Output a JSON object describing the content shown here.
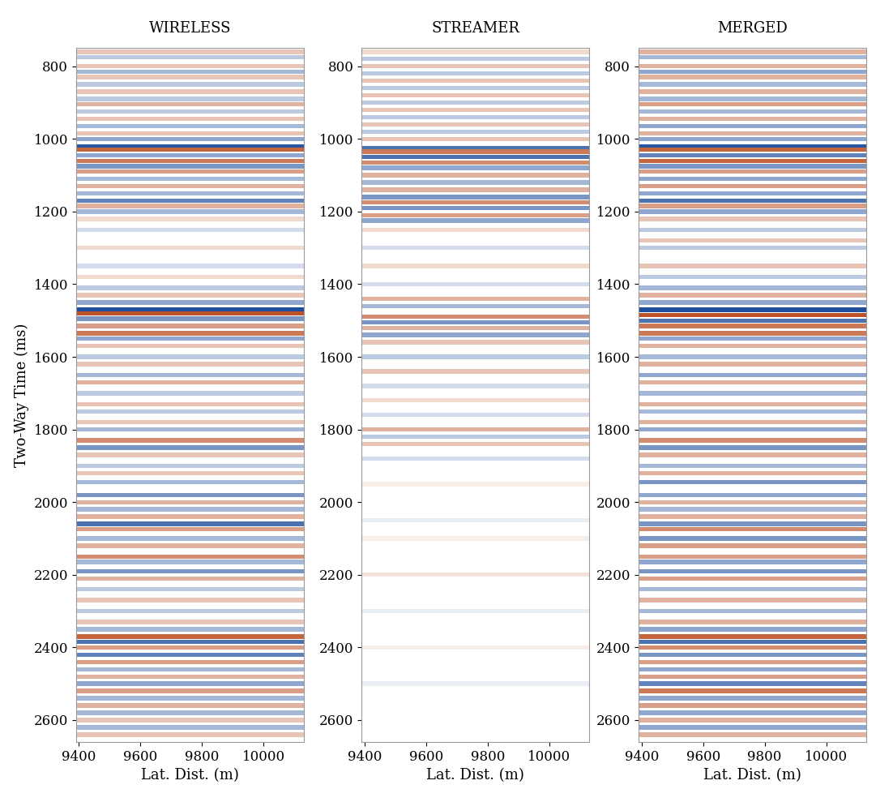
{
  "chart_data": [
    {
      "type": "seismic",
      "title": "WIRELESS",
      "x_label": "Lat. Dist. (m)",
      "y_label": "Two-Way Time (ms)",
      "xlim": [
        9390,
        10130
      ],
      "xticks": [
        9400,
        9600,
        9800,
        10000
      ],
      "ylim": [
        2660,
        750
      ],
      "yticks": [
        800,
        1000,
        1200,
        1400,
        1600,
        1800,
        2000,
        2200,
        2400,
        2600
      ],
      "colors": [
        "#1f4e9c",
        "#ffffff",
        "#b5400f"
      ],
      "amplitude_range": [
        -1,
        1
      ],
      "reflectors": [
        [
          760,
          0.3
        ],
        [
          775,
          -0.3
        ],
        [
          800,
          0.3
        ],
        [
          815,
          -0.4
        ],
        [
          830,
          0.3
        ],
        [
          850,
          -0.3
        ],
        [
          870,
          0.3
        ],
        [
          890,
          -0.3
        ],
        [
          905,
          0.4
        ],
        [
          925,
          -0.3
        ],
        [
          945,
          0.3
        ],
        [
          965,
          -0.4
        ],
        [
          985,
          0.3
        ],
        [
          1000,
          -0.5
        ],
        [
          1020,
          -0.95
        ],
        [
          1030,
          0.8
        ],
        [
          1045,
          -0.5
        ],
        [
          1060,
          0.7
        ],
        [
          1075,
          -0.6
        ],
        [
          1090,
          0.5
        ],
        [
          1110,
          -0.4
        ],
        [
          1130,
          0.4
        ],
        [
          1150,
          -0.4
        ],
        [
          1170,
          -0.7
        ],
        [
          1185,
          0.4
        ],
        [
          1200,
          -0.4
        ],
        [
          1220,
          0.2
        ],
        [
          1250,
          -0.2
        ],
        [
          1300,
          0.2
        ],
        [
          1350,
          -0.2
        ],
        [
          1380,
          0.2
        ],
        [
          1410,
          -0.3
        ],
        [
          1430,
          0.3
        ],
        [
          1450,
          -0.5
        ],
        [
          1470,
          -1.0
        ],
        [
          1480,
          0.9
        ],
        [
          1495,
          -0.6
        ],
        [
          1515,
          0.5
        ],
        [
          1535,
          0.7
        ],
        [
          1550,
          -0.5
        ],
        [
          1570,
          0.3
        ],
        [
          1600,
          -0.3
        ],
        [
          1620,
          0.3
        ],
        [
          1650,
          -0.4
        ],
        [
          1670,
          0.4
        ],
        [
          1700,
          -0.3
        ],
        [
          1730,
          0.3
        ],
        [
          1750,
          -0.3
        ],
        [
          1780,
          0.3
        ],
        [
          1800,
          -0.4
        ],
        [
          1830,
          0.6
        ],
        [
          1850,
          -0.6
        ],
        [
          1870,
          0.3
        ],
        [
          1900,
          -0.3
        ],
        [
          1920,
          0.3
        ],
        [
          1945,
          -0.4
        ],
        [
          1980,
          -0.6
        ],
        [
          2000,
          0.4
        ],
        [
          2020,
          -0.4
        ],
        [
          2040,
          0.4
        ],
        [
          2060,
          -0.8
        ],
        [
          2075,
          0.5
        ],
        [
          2100,
          -0.4
        ],
        [
          2120,
          0.4
        ],
        [
          2150,
          0.6
        ],
        [
          2165,
          -0.4
        ],
        [
          2190,
          -0.6
        ],
        [
          2210,
          0.4
        ],
        [
          2240,
          -0.3
        ],
        [
          2270,
          0.3
        ],
        [
          2300,
          -0.3
        ],
        [
          2330,
          0.3
        ],
        [
          2350,
          -0.4
        ],
        [
          2370,
          0.8
        ],
        [
          2385,
          -0.8
        ],
        [
          2400,
          0.5
        ],
        [
          2420,
          -0.7
        ],
        [
          2440,
          0.5
        ],
        [
          2460,
          -0.4
        ],
        [
          2480,
          0.4
        ],
        [
          2500,
          -0.5
        ],
        [
          2520,
          0.5
        ],
        [
          2540,
          -0.4
        ],
        [
          2560,
          0.4
        ],
        [
          2580,
          -0.4
        ],
        [
          2600,
          0.3
        ],
        [
          2620,
          -0.4
        ],
        [
          2640,
          0.3
        ]
      ]
    },
    {
      "type": "seismic",
      "title": "STREAMER",
      "x_label": "Lat. Dist. (m)",
      "xlim": [
        9390,
        10130
      ],
      "xticks": [
        9400,
        9600,
        9800,
        10000
      ],
      "ylim": [
        2660,
        750
      ],
      "yticks": [
        800,
        1000,
        1200,
        1400,
        1600,
        1800,
        2000,
        2200,
        2400,
        2600
      ],
      "colors": [
        "#1f4e9c",
        "#ffffff",
        "#b5400f"
      ],
      "amplitude_range": [
        -1,
        1
      ],
      "reflectors": [
        [
          760,
          0.2
        ],
        [
          780,
          -0.3
        ],
        [
          800,
          0.3
        ],
        [
          820,
          -0.3
        ],
        [
          840,
          0.3
        ],
        [
          860,
          -0.3
        ],
        [
          880,
          0.3
        ],
        [
          900,
          -0.3
        ],
        [
          920,
          0.3
        ],
        [
          940,
          -0.3
        ],
        [
          960,
          0.3
        ],
        [
          980,
          -0.3
        ],
        [
          1000,
          0.3
        ],
        [
          1025,
          -0.8
        ],
        [
          1035,
          0.7
        ],
        [
          1050,
          -0.8
        ],
        [
          1065,
          0.6
        ],
        [
          1080,
          -0.5
        ],
        [
          1100,
          0.4
        ],
        [
          1120,
          -0.4
        ],
        [
          1140,
          0.4
        ],
        [
          1160,
          -0.6
        ],
        [
          1175,
          0.6
        ],
        [
          1190,
          -0.6
        ],
        [
          1210,
          0.5
        ],
        [
          1225,
          -0.5
        ],
        [
          1250,
          0.2
        ],
        [
          1300,
          -0.2
        ],
        [
          1350,
          0.2
        ],
        [
          1400,
          -0.2
        ],
        [
          1440,
          0.4
        ],
        [
          1460,
          -0.4
        ],
        [
          1490,
          0.6
        ],
        [
          1505,
          -0.6
        ],
        [
          1520,
          0.4
        ],
        [
          1540,
          -0.5
        ],
        [
          1560,
          0.3
        ],
        [
          1600,
          -0.3
        ],
        [
          1640,
          0.3
        ],
        [
          1680,
          -0.2
        ],
        [
          1720,
          0.2
        ],
        [
          1760,
          -0.2
        ],
        [
          1800,
          0.4
        ],
        [
          1820,
          -0.3
        ],
        [
          1840,
          0.3
        ],
        [
          1880,
          -0.2
        ],
        [
          1950,
          0.1
        ],
        [
          2050,
          -0.1
        ],
        [
          2100,
          0.1
        ],
        [
          2200,
          0.15
        ],
        [
          2300,
          -0.1
        ],
        [
          2400,
          0.1
        ],
        [
          2500,
          -0.1
        ]
      ]
    },
    {
      "type": "seismic",
      "title": "MERGED",
      "x_label": "Lat. Dist. (m)",
      "xlim": [
        9390,
        10130
      ],
      "xticks": [
        9400,
        9600,
        9800,
        10000
      ],
      "ylim": [
        2660,
        750
      ],
      "yticks": [
        800,
        1000,
        1200,
        1400,
        1600,
        1800,
        2000,
        2200,
        2400,
        2600
      ],
      "colors": [
        "#1f4e9c",
        "#ffffff",
        "#b5400f"
      ],
      "amplitude_range": [
        -1,
        1
      ],
      "reflectors": [
        [
          760,
          0.4
        ],
        [
          775,
          -0.4
        ],
        [
          800,
          0.4
        ],
        [
          815,
          -0.5
        ],
        [
          830,
          0.4
        ],
        [
          850,
          -0.4
        ],
        [
          870,
          0.4
        ],
        [
          890,
          -0.4
        ],
        [
          905,
          0.5
        ],
        [
          925,
          -0.4
        ],
        [
          945,
          0.4
        ],
        [
          965,
          -0.5
        ],
        [
          985,
          0.4
        ],
        [
          1000,
          -0.5
        ],
        [
          1020,
          -0.95
        ],
        [
          1030,
          0.8
        ],
        [
          1045,
          -0.7
        ],
        [
          1060,
          0.8
        ],
        [
          1075,
          -0.6
        ],
        [
          1090,
          0.5
        ],
        [
          1110,
          -0.5
        ],
        [
          1130,
          0.5
        ],
        [
          1150,
          -0.5
        ],
        [
          1170,
          -0.8
        ],
        [
          1185,
          0.5
        ],
        [
          1200,
          -0.5
        ],
        [
          1220,
          0.3
        ],
        [
          1250,
          -0.3
        ],
        [
          1280,
          0.3
        ],
        [
          1300,
          -0.3
        ],
        [
          1350,
          0.3
        ],
        [
          1380,
          -0.3
        ],
        [
          1410,
          -0.4
        ],
        [
          1430,
          0.4
        ],
        [
          1450,
          -0.5
        ],
        [
          1470,
          -1.0
        ],
        [
          1485,
          0.9
        ],
        [
          1500,
          -0.8
        ],
        [
          1515,
          0.7
        ],
        [
          1535,
          0.7
        ],
        [
          1550,
          -0.5
        ],
        [
          1570,
          0.4
        ],
        [
          1600,
          -0.4
        ],
        [
          1620,
          0.4
        ],
        [
          1650,
          -0.5
        ],
        [
          1670,
          0.4
        ],
        [
          1700,
          -0.4
        ],
        [
          1730,
          0.4
        ],
        [
          1750,
          -0.4
        ],
        [
          1780,
          0.4
        ],
        [
          1800,
          -0.5
        ],
        [
          1830,
          0.6
        ],
        [
          1850,
          -0.6
        ],
        [
          1870,
          0.4
        ],
        [
          1900,
          -0.4
        ],
        [
          1920,
          0.4
        ],
        [
          1945,
          -0.6
        ],
        [
          1980,
          -0.5
        ],
        [
          2000,
          0.4
        ],
        [
          2020,
          -0.4
        ],
        [
          2040,
          0.4
        ],
        [
          2060,
          -0.6
        ],
        [
          2075,
          0.6
        ],
        [
          2100,
          -0.6
        ],
        [
          2120,
          0.5
        ],
        [
          2150,
          0.5
        ],
        [
          2165,
          -0.5
        ],
        [
          2190,
          -0.6
        ],
        [
          2210,
          0.5
        ],
        [
          2240,
          -0.4
        ],
        [
          2270,
          0.4
        ],
        [
          2300,
          -0.4
        ],
        [
          2330,
          0.4
        ],
        [
          2350,
          -0.5
        ],
        [
          2370,
          0.8
        ],
        [
          2385,
          -0.8
        ],
        [
          2400,
          0.6
        ],
        [
          2420,
          -0.6
        ],
        [
          2440,
          0.5
        ],
        [
          2460,
          -0.5
        ],
        [
          2480,
          0.5
        ],
        [
          2500,
          -0.7
        ],
        [
          2520,
          0.7
        ],
        [
          2540,
          -0.5
        ],
        [
          2560,
          0.5
        ],
        [
          2580,
          -0.5
        ],
        [
          2600,
          0.4
        ],
        [
          2620,
          -0.5
        ],
        [
          2640,
          0.4
        ]
      ]
    }
  ]
}
